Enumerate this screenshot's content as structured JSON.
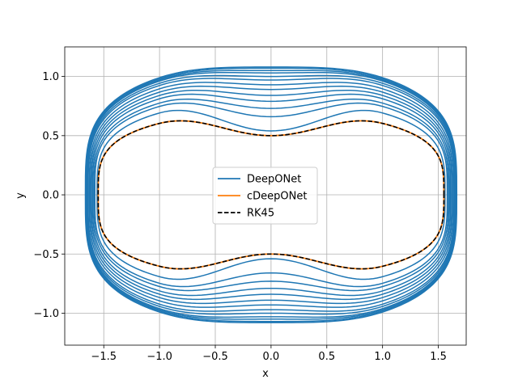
{
  "chart_data": {
    "type": "line",
    "title": "",
    "xlabel": "x",
    "ylabel": "y",
    "xlim": [
      -1.85,
      1.75
    ],
    "ylim": [
      -1.27,
      1.25
    ],
    "xticks": [
      -1.5,
      -1.0,
      -0.5,
      0.0,
      0.5,
      1.0,
      1.5
    ],
    "xtick_labels": [
      "−1.5",
      "−1.0",
      "−0.5",
      "0.0",
      "0.5",
      "1.0",
      "1.5"
    ],
    "yticks": [
      -1.0,
      -0.5,
      0.0,
      0.5,
      1.0
    ],
    "ytick_labels": [
      "−1.0",
      "−0.5",
      "0.0",
      "0.5",
      "1.0"
    ],
    "grid": true,
    "legend": {
      "placement": "center"
    },
    "series": [
      {
        "name": "DeepONet",
        "color": "#1f77b4",
        "style": "solid",
        "description_orbits": "spiralling orbits growing from the reference limit cycle outward",
        "orbits": [
          {
            "x_amp": 1.56,
            "y_max": 0.8,
            "y_center": 0.54
          },
          {
            "x_amp": 1.58,
            "y_max": 0.86,
            "y_center": 0.66
          },
          {
            "x_amp": 1.59,
            "y_max": 0.89,
            "y_center": 0.73
          },
          {
            "x_amp": 1.6,
            "y_max": 0.93,
            "y_center": 0.79
          },
          {
            "x_amp": 1.61,
            "y_max": 0.96,
            "y_center": 0.84
          },
          {
            "x_amp": 1.62,
            "y_max": 0.99,
            "y_center": 0.89
          },
          {
            "x_amp": 1.63,
            "y_max": 1.02,
            "y_center": 0.93
          },
          {
            "x_amp": 1.64,
            "y_max": 1.05,
            "y_center": 0.97
          },
          {
            "x_amp": 1.645,
            "y_max": 1.07,
            "y_center": 1.0
          },
          {
            "x_amp": 1.65,
            "y_max": 1.09,
            "y_center": 1.03
          },
          {
            "x_amp": 1.655,
            "y_max": 1.1,
            "y_center": 1.05
          },
          {
            "x_amp": 1.66,
            "y_max": 1.11,
            "y_center": 1.07
          },
          {
            "x_amp": 1.665,
            "y_max": 1.12,
            "y_center": 1.08
          }
        ]
      },
      {
        "name": "cDeepONet",
        "color": "#ff7f0e",
        "style": "solid",
        "x_amp": 1.55,
        "y_max": 0.7,
        "y_center": 0.5
      },
      {
        "name": "RK45",
        "color": "#000000",
        "style": "dashed",
        "x_amp": 1.55,
        "y_max": 0.7,
        "y_center": 0.5
      }
    ]
  }
}
